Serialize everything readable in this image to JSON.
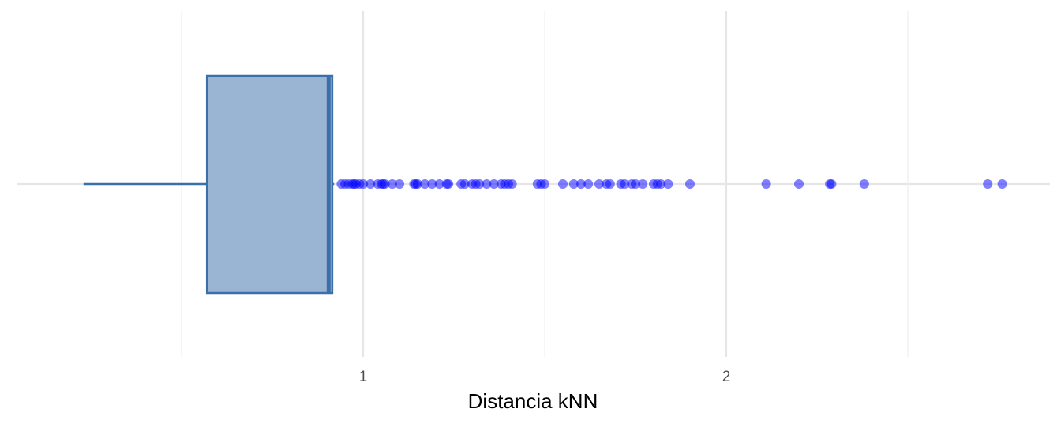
{
  "chart_data": {
    "type": "boxplot",
    "title": "",
    "xlabel": "Distancia kNN",
    "ylabel": "",
    "xlim": [
      0.45,
      2.9
    ],
    "x_ticks": [
      {
        "value": 1,
        "label": "1"
      },
      {
        "value": 2,
        "label": "2"
      }
    ],
    "minor_gridlines": [
      0.5,
      1.5,
      2.5
    ],
    "grid": true,
    "orientation": "horizontal",
    "box": {
      "whisker_low": 0.23,
      "q1": 0.57,
      "median": 0.905,
      "q3": 0.915,
      "whisker_high": 0.92
    },
    "outliers": [
      0.94,
      0.95,
      0.96,
      0.97,
      0.975,
      0.98,
      0.99,
      1.0,
      1.02,
      1.04,
      1.05,
      1.055,
      1.06,
      1.08,
      1.1,
      1.14,
      1.145,
      1.15,
      1.17,
      1.19,
      1.21,
      1.23,
      1.235,
      1.27,
      1.28,
      1.3,
      1.31,
      1.32,
      1.34,
      1.36,
      1.38,
      1.39,
      1.4,
      1.41,
      1.48,
      1.49,
      1.5,
      1.55,
      1.58,
      1.6,
      1.62,
      1.65,
      1.67,
      1.68,
      1.71,
      1.72,
      1.74,
      1.75,
      1.77,
      1.8,
      1.81,
      1.82,
      1.84,
      1.9,
      2.11,
      2.2,
      2.285,
      2.29,
      2.38,
      2.72,
      2.76
    ],
    "colors": {
      "box_fill": "#9ab5d4",
      "box_stroke": "#3b6fa8",
      "outlier": "#0000ff",
      "grid": "#e6e6e6"
    }
  }
}
